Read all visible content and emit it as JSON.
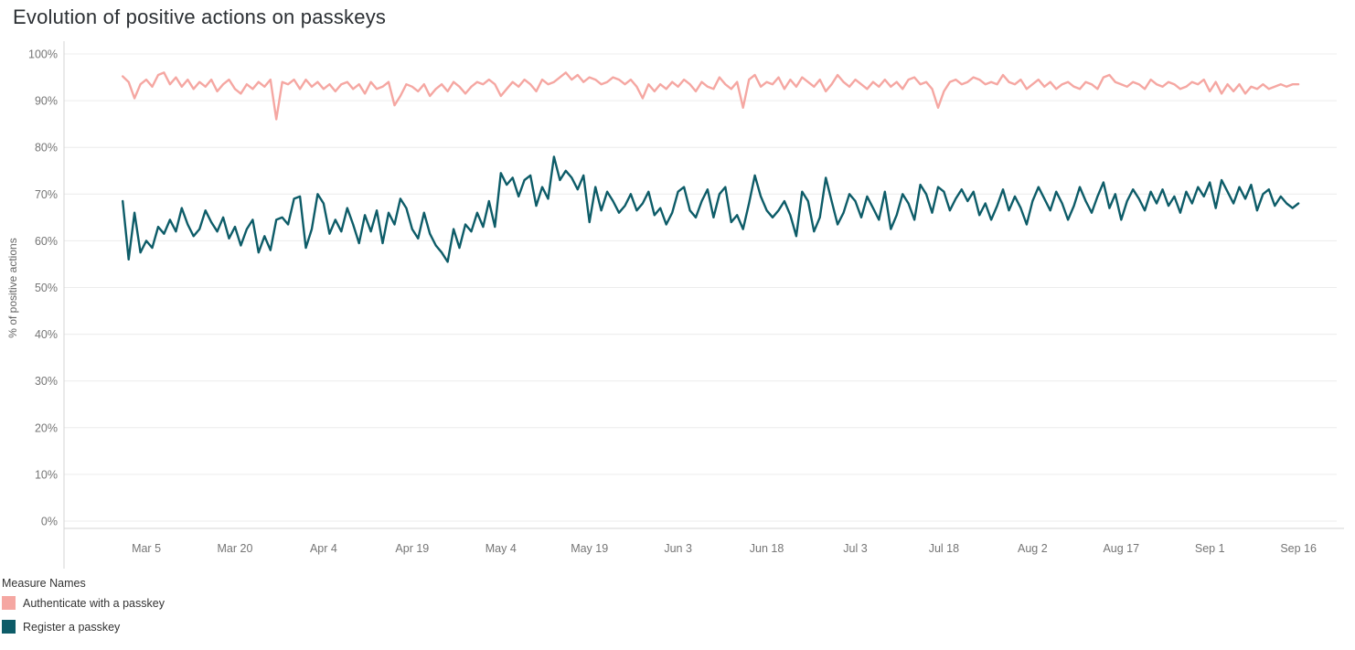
{
  "title": "Evolution of positive actions on passkeys",
  "colors": {
    "authenticate": "#f5a7a2",
    "register": "#0d5c68",
    "axis_text": "#757575",
    "grid": "#ececec",
    "axis_line": "#d4d4d4",
    "title_text": "#2b2f33"
  },
  "legend": {
    "title": "Measure Names",
    "items": [
      {
        "label": "Authenticate with a passkey",
        "color": "#f5a7a2"
      },
      {
        "label": "Register a passkey",
        "color": "#0d5c68"
      }
    ]
  },
  "chart_data": {
    "type": "line",
    "title": "Evolution of positive actions on passkeys",
    "xlabel": "",
    "ylabel": "% of positive actions",
    "ylim": [
      0,
      100
    ],
    "grid": "horizontal",
    "legend_position": "bottom-left",
    "y_tick_values": [
      0,
      10,
      20,
      30,
      40,
      50,
      60,
      70,
      80,
      90,
      100
    ],
    "y_tick_labels": [
      "0%",
      "10%",
      "20%",
      "30%",
      "40%",
      "50%",
      "60%",
      "70%",
      "80%",
      "90%",
      "100%"
    ],
    "x_unit": "day",
    "x_start_date": "Mar 1",
    "x_end_date": "Sep 16",
    "x_tick_labels": [
      "Mar 5",
      "Mar 20",
      "Apr 4",
      "Apr 19",
      "May 4",
      "May 19",
      "Jun 3",
      "Jun 18",
      "Jul 3",
      "Jul 18",
      "Aug 2",
      "Aug 17",
      "Sep 1",
      "Sep 16"
    ],
    "x_tick_indices": [
      4,
      19,
      34,
      49,
      64,
      79,
      94,
      109,
      124,
      139,
      154,
      169,
      184,
      199
    ],
    "series": [
      {
        "name": "Authenticate with a passkey",
        "color": "#f5a7a2",
        "values": [
          95.2,
          94.0,
          90.5,
          93.5,
          94.5,
          93.0,
          95.5,
          96.0,
          93.5,
          95.0,
          93.0,
          94.5,
          92.5,
          94.0,
          93.0,
          94.5,
          92.0,
          93.5,
          94.5,
          92.5,
          91.5,
          93.5,
          92.5,
          94.0,
          93.0,
          94.5,
          86.0,
          94.0,
          93.5,
          94.5,
          92.5,
          94.5,
          93.0,
          94.0,
          92.5,
          93.5,
          92.0,
          93.5,
          94.0,
          92.5,
          93.5,
          91.5,
          94.0,
          92.5,
          93.0,
          94.0,
          89.0,
          91.0,
          93.5,
          93.0,
          92.0,
          93.5,
          91.0,
          92.5,
          93.5,
          92.0,
          94.0,
          93.0,
          91.5,
          93.0,
          94.0,
          93.5,
          94.5,
          93.5,
          91.0,
          92.5,
          94.0,
          93.0,
          94.5,
          93.5,
          92.0,
          94.5,
          93.5,
          94.0,
          95.0,
          96.0,
          94.5,
          95.5,
          94.0,
          95.0,
          94.5,
          93.5,
          94.0,
          95.0,
          94.5,
          93.5,
          94.5,
          93.0,
          90.5,
          93.5,
          92.0,
          93.5,
          92.5,
          94.0,
          93.0,
          94.5,
          93.5,
          92.0,
          94.0,
          93.0,
          92.5,
          95.0,
          93.5,
          92.5,
          94.0,
          88.5,
          94.5,
          95.5,
          93.0,
          94.0,
          93.5,
          95.0,
          92.5,
          94.5,
          93.0,
          95.0,
          94.0,
          93.0,
          94.5,
          92.0,
          93.5,
          95.5,
          94.0,
          93.0,
          94.5,
          93.5,
          92.5,
          94.0,
          93.0,
          94.5,
          93.0,
          94.0,
          92.5,
          94.5,
          95.0,
          93.5,
          94.0,
          92.5,
          88.5,
          92.0,
          94.0,
          94.5,
          93.5,
          94.0,
          95.0,
          94.5,
          93.5,
          94.0,
          93.5,
          95.5,
          94.0,
          93.5,
          94.5,
          92.5,
          93.5,
          94.5,
          93.0,
          94.0,
          92.5,
          93.5,
          94.0,
          93.0,
          92.5,
          94.0,
          93.5,
          92.5,
          95.0,
          95.5,
          94.0,
          93.5,
          93.0,
          94.0,
          93.5,
          92.5,
          94.5,
          93.5,
          93.0,
          94.0,
          93.5,
          92.5,
          93.0,
          94.0,
          93.5,
          94.5,
          92.0,
          94.0,
          91.5,
          93.5,
          92.0,
          93.5,
          91.5,
          93.0,
          92.5,
          93.5,
          92.5,
          93.0,
          93.5,
          93.0,
          93.5,
          93.5
        ]
      },
      {
        "name": "Register a passkey",
        "color": "#0d5c68",
        "values": [
          68.5,
          56.0,
          66.0,
          57.5,
          60.0,
          58.5,
          63.0,
          61.5,
          64.5,
          62.0,
          67.0,
          63.5,
          61.0,
          62.5,
          66.5,
          64.0,
          62.0,
          65.0,
          60.5,
          63.0,
          59.0,
          62.5,
          64.5,
          57.5,
          61.0,
          58.0,
          64.5,
          65.0,
          63.5,
          69.0,
          69.5,
          58.5,
          62.5,
          70.0,
          68.0,
          61.5,
          64.5,
          62.0,
          67.0,
          63.5,
          59.5,
          65.5,
          62.0,
          66.5,
          59.5,
          66.0,
          63.5,
          69.0,
          67.0,
          62.5,
          60.5,
          66.0,
          61.5,
          59.0,
          57.5,
          55.5,
          62.5,
          58.5,
          63.5,
          62.0,
          66.0,
          63.0,
          68.5,
          63.0,
          74.5,
          72.0,
          73.5,
          69.5,
          73.0,
          74.0,
          67.5,
          71.5,
          69.0,
          78.0,
          73.0,
          75.0,
          73.5,
          71.0,
          74.0,
          64.0,
          71.5,
          66.5,
          70.5,
          68.5,
          66.0,
          67.5,
          70.0,
          66.5,
          68.0,
          70.5,
          65.5,
          67.0,
          63.5,
          66.0,
          70.5,
          71.5,
          66.5,
          65.0,
          68.5,
          71.0,
          65.0,
          70.0,
          71.5,
          64.0,
          65.5,
          62.5,
          68.0,
          74.0,
          69.5,
          66.5,
          65.0,
          66.5,
          68.5,
          65.5,
          61.0,
          70.5,
          68.5,
          62.0,
          65.0,
          73.5,
          68.5,
          63.5,
          66.0,
          70.0,
          68.5,
          65.0,
          69.5,
          67.0,
          64.5,
          70.5,
          62.5,
          65.5,
          70.0,
          68.0,
          64.5,
          72.0,
          70.0,
          66.0,
          71.5,
          70.5,
          66.5,
          69.0,
          71.0,
          68.5,
          70.5,
          65.5,
          68.0,
          64.5,
          67.5,
          71.0,
          66.5,
          69.5,
          67.0,
          63.5,
          68.5,
          71.5,
          69.0,
          66.5,
          70.5,
          68.0,
          64.5,
          67.5,
          71.5,
          68.5,
          66.0,
          69.5,
          72.5,
          67.0,
          70.0,
          64.5,
          68.5,
          71.0,
          69.0,
          66.5,
          70.5,
          68.0,
          71.0,
          67.5,
          69.5,
          66.0,
          70.5,
          68.0,
          71.5,
          69.5,
          72.5,
          67.0,
          73.0,
          70.5,
          68.0,
          71.5,
          69.0,
          72.0,
          66.5,
          70.0,
          71.0,
          67.5,
          69.5,
          68.0,
          67.0,
          68.0
        ]
      }
    ]
  }
}
